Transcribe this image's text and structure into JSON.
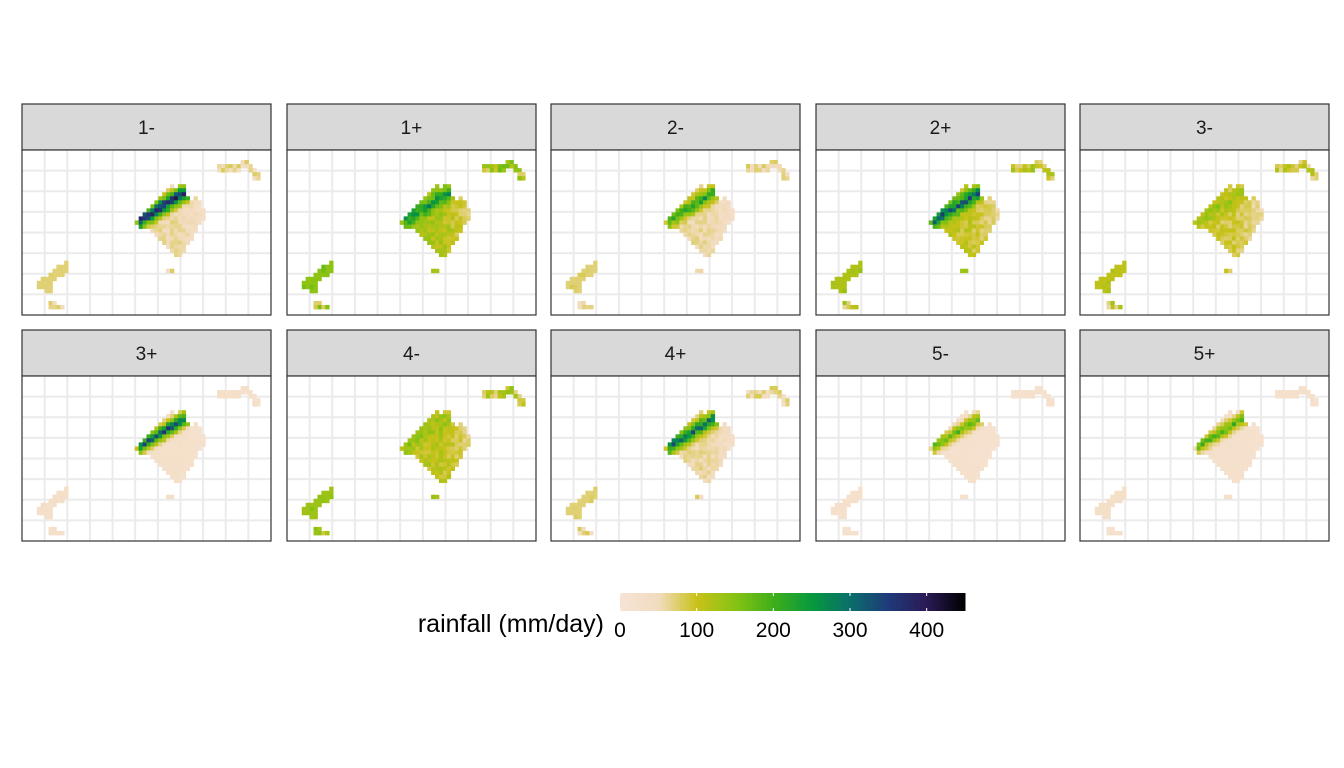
{
  "chart_data": {
    "type": "heatmap",
    "title": "",
    "xlabel": "",
    "ylabel": "",
    "grid": true,
    "panels": [
      "1-",
      "1+",
      "2-",
      "2+",
      "3-",
      "3+",
      "4-",
      "4+",
      "5-",
      "5+"
    ],
    "legend": {
      "title": "rainfall (mm/day)",
      "placement": "bottom",
      "range": [
        0,
        450
      ],
      "ticks": [
        0,
        100,
        200,
        300,
        400
      ],
      "colors": [
        "#f7e3d4",
        "#f2dcc0",
        "#c9c21a",
        "#86c313",
        "#3fae1b",
        "#07993d",
        "#0a6e6a",
        "#1f3a7a",
        "#2a1a55",
        "#000000"
      ]
    },
    "panel_summary": [
      {
        "panel": "1-",
        "base_rainfall": 60,
        "northwest_coast_max": 400
      },
      {
        "panel": "1+",
        "base_rainfall": 120,
        "northwest_coast_max": 260
      },
      {
        "panel": "2-",
        "base_rainfall": 60,
        "northwest_coast_max": 240
      },
      {
        "panel": "2+",
        "base_rainfall": 100,
        "northwest_coast_max": 320
      },
      {
        "panel": "3-",
        "base_rainfall": 90,
        "northwest_coast_max": 140
      },
      {
        "panel": "3+",
        "base_rainfall": 25,
        "northwest_coast_max": 330
      },
      {
        "panel": "4-",
        "base_rainfall": 110,
        "northwest_coast_max": 140
      },
      {
        "panel": "4+",
        "base_rainfall": 60,
        "northwest_coast_max": 310
      },
      {
        "panel": "5-",
        "base_rainfall": 18,
        "northwest_coast_max": 180
      },
      {
        "panel": "5+",
        "base_rainfall": 22,
        "northwest_coast_max": 190
      }
    ]
  }
}
